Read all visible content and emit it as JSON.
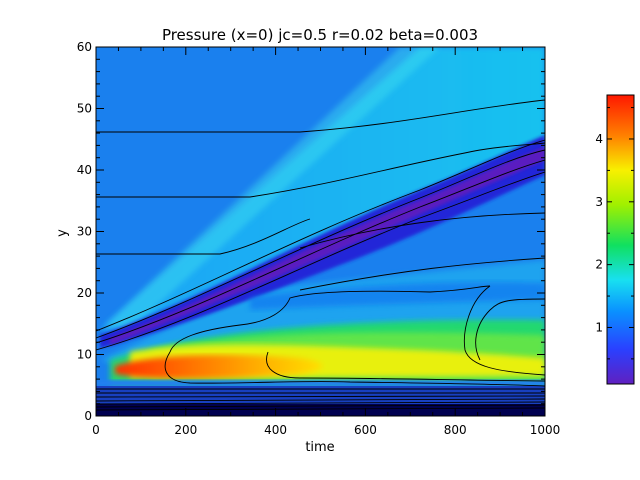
{
  "chart_data": {
    "type": "heatmap",
    "title": "Pressure (x=0) jc=0.5 r=0.02 beta=0.003",
    "xlabel": "time",
    "ylabel": "y",
    "xlim": [
      0,
      1000
    ],
    "ylim": [
      0,
      60
    ],
    "x_ticks": [
      "0",
      "200",
      "400",
      "600",
      "800",
      "1000"
    ],
    "y_ticks": [
      "0",
      "10",
      "20",
      "30",
      "40",
      "50",
      "60"
    ],
    "colorbar": {
      "min": 0.1,
      "max": 4.7,
      "ticks": [
        "1",
        "2",
        "3",
        "4"
      ],
      "colormap": "rainbow"
    },
    "grid": false
  }
}
